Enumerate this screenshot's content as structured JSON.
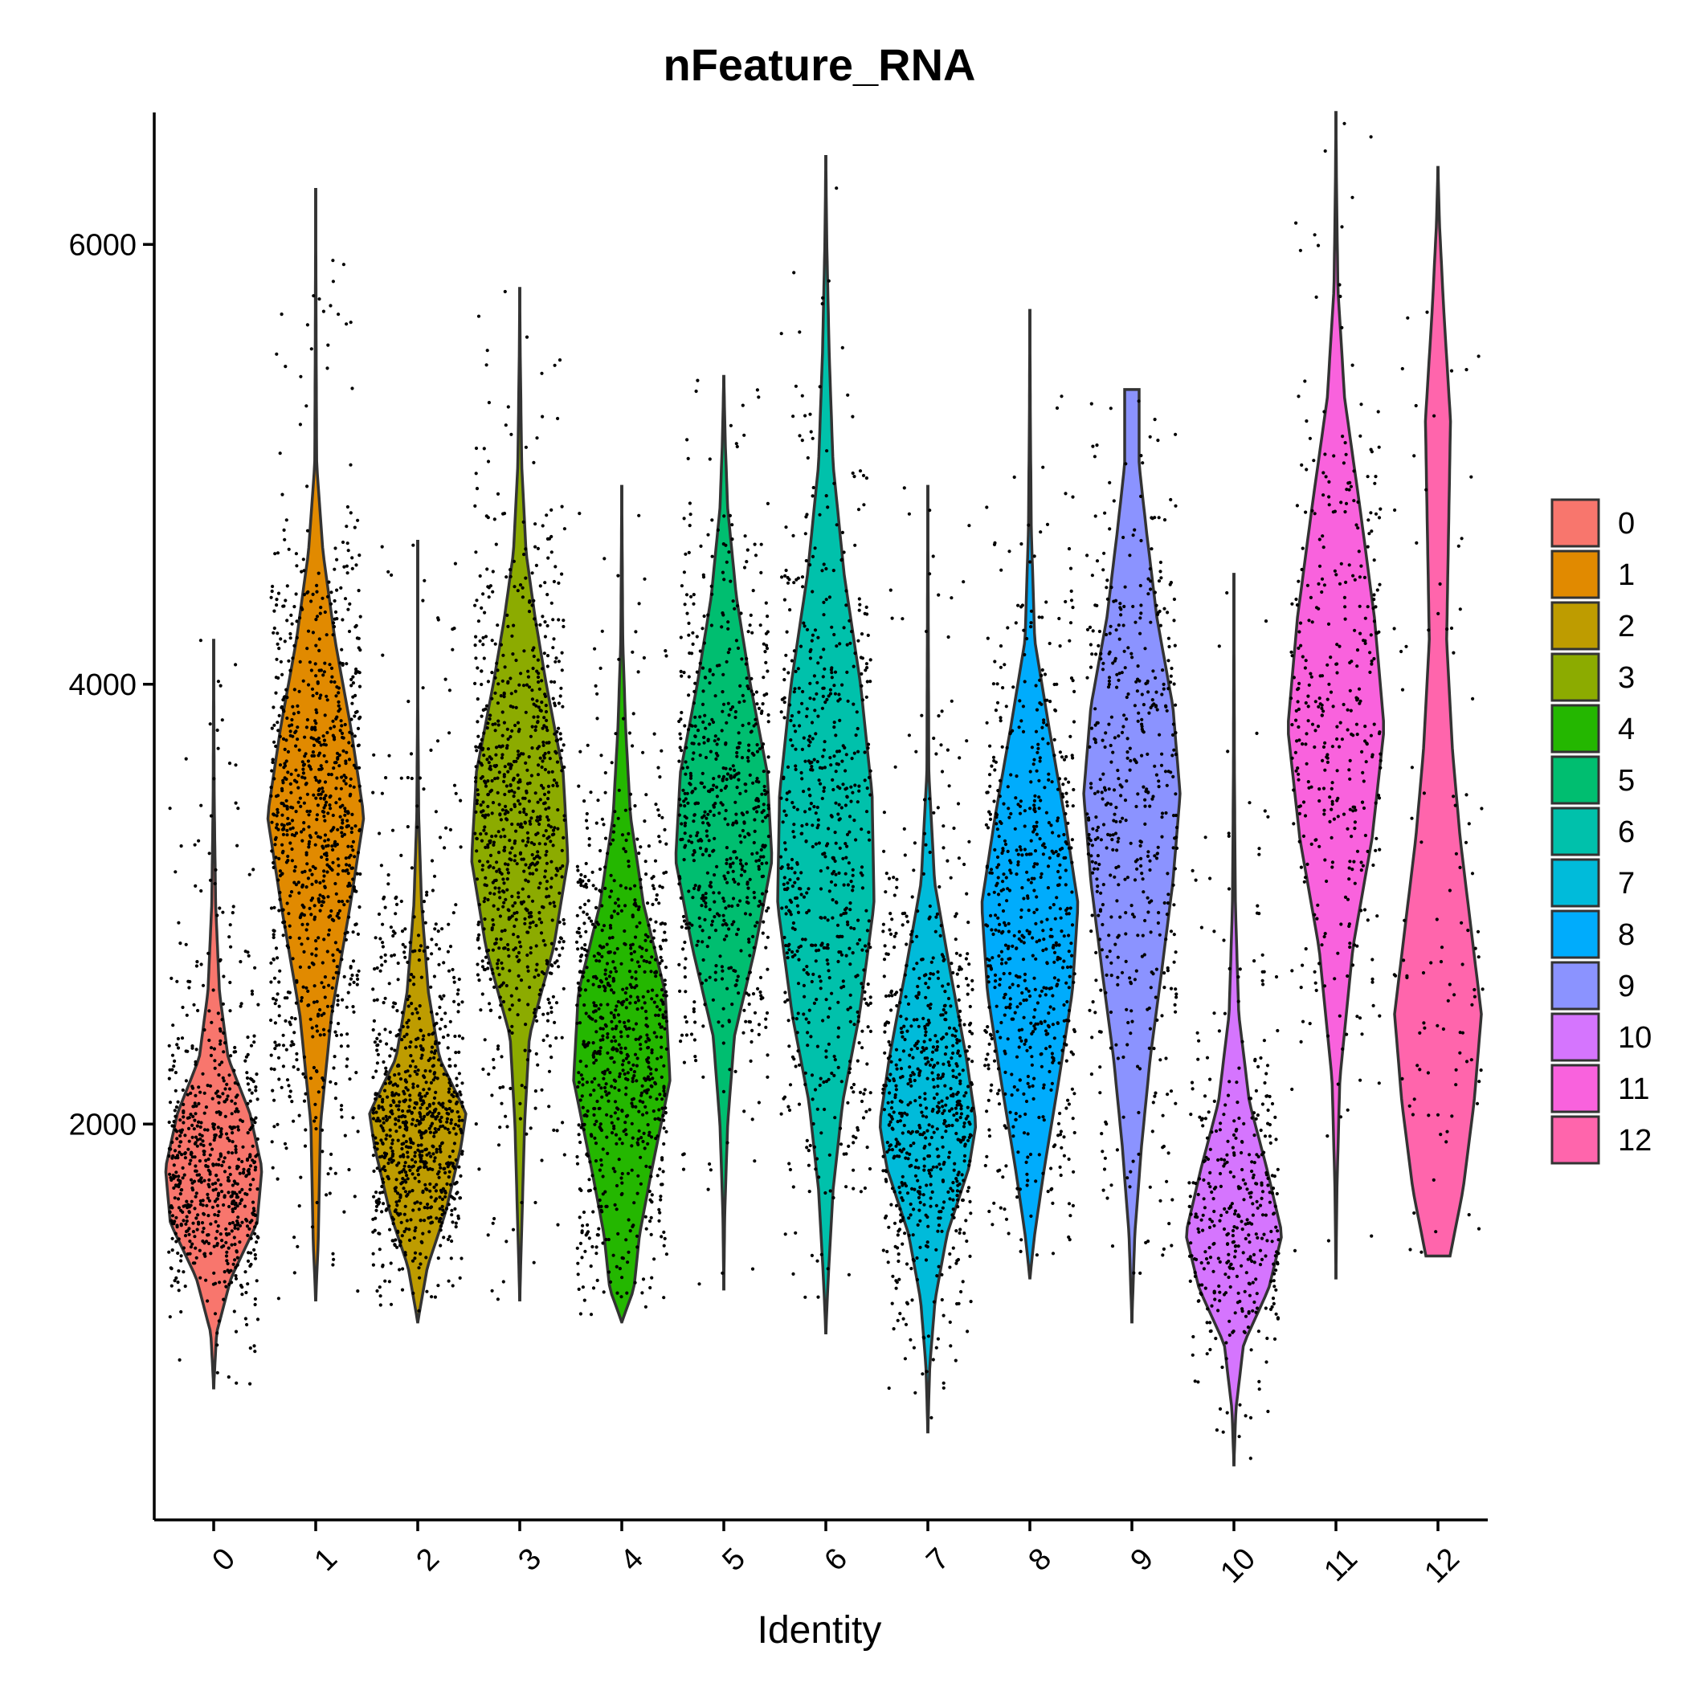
{
  "chart_data": {
    "type": "violin",
    "title": "nFeature_RNA",
    "xlabel": "Identity",
    "ylabel": "",
    "ylim": [
      200,
      6600
    ],
    "yticks": [
      2000,
      4000,
      6000
    ],
    "grid": false,
    "legend_position": "right",
    "categories": [
      "0",
      "1",
      "2",
      "3",
      "4",
      "5",
      "6",
      "7",
      "8",
      "9",
      "10",
      "11",
      "12"
    ],
    "series": [
      {
        "name": "0",
        "color": "#F8766D",
        "min": 800,
        "max": 4200,
        "profile": [
          [
            800,
            0
          ],
          [
            1050,
            0.06
          ],
          [
            1300,
            0.36
          ],
          [
            1550,
            0.9
          ],
          [
            1800,
            1
          ],
          [
            2050,
            0.75
          ],
          [
            2300,
            0.3
          ],
          [
            2600,
            0.12
          ],
          [
            3000,
            0.04
          ],
          [
            3500,
            0.01
          ],
          [
            4200,
            0
          ]
        ],
        "points": 700
      },
      {
        "name": "1",
        "color": "#E18A00",
        "min": 1200,
        "max": 6250,
        "profile": [
          [
            1200,
            0
          ],
          [
            1450,
            0.05
          ],
          [
            2000,
            0.1
          ],
          [
            2500,
            0.33
          ],
          [
            3000,
            0.72
          ],
          [
            3400,
            1
          ],
          [
            3800,
            0.73
          ],
          [
            4200,
            0.4
          ],
          [
            4600,
            0.15
          ],
          [
            5000,
            0.02
          ],
          [
            5500,
            0.01
          ],
          [
            6250,
            0
          ]
        ],
        "points": 900
      },
      {
        "name": "2",
        "color": "#BE9C00",
        "min": 1100,
        "max": 4650,
        "profile": [
          [
            1100,
            0
          ],
          [
            1350,
            0.2
          ],
          [
            1600,
            0.58
          ],
          [
            1900,
            0.9
          ],
          [
            2050,
            1
          ],
          [
            2300,
            0.45
          ],
          [
            2600,
            0.22
          ],
          [
            3000,
            0.08
          ],
          [
            3400,
            0.02
          ],
          [
            4000,
            0
          ],
          [
            4650,
            0
          ]
        ],
        "points": 850
      },
      {
        "name": "3",
        "color": "#8CAB00",
        "min": 1200,
        "max": 5800,
        "profile": [
          [
            1200,
            0
          ],
          [
            1600,
            0.05
          ],
          [
            2000,
            0.1
          ],
          [
            2400,
            0.2
          ],
          [
            2800,
            0.7
          ],
          [
            3200,
            1
          ],
          [
            3600,
            0.9
          ],
          [
            4000,
            0.55
          ],
          [
            4300,
            0.32
          ],
          [
            4600,
            0.13
          ],
          [
            5000,
            0.04
          ],
          [
            5500,
            0.01
          ],
          [
            5800,
            0
          ]
        ],
        "points": 850
      },
      {
        "name": "4",
        "color": "#24B700",
        "min": 1100,
        "max": 4900,
        "profile": [
          [
            1100,
            0
          ],
          [
            1250,
            0.25
          ],
          [
            1500,
            0.37
          ],
          [
            1800,
            0.63
          ],
          [
            2200,
            1
          ],
          [
            2600,
            0.9
          ],
          [
            3000,
            0.45
          ],
          [
            3400,
            0.18
          ],
          [
            3800,
            0.08
          ],
          [
            4200,
            0.02
          ],
          [
            4900,
            0
          ]
        ],
        "points": 800
      },
      {
        "name": "5",
        "color": "#00BE70",
        "min": 1250,
        "max": 5400,
        "profile": [
          [
            1250,
            0
          ],
          [
            1600,
            0.02
          ],
          [
            2000,
            0.08
          ],
          [
            2400,
            0.22
          ],
          [
            2800,
            0.65
          ],
          [
            3200,
            1
          ],
          [
            3600,
            0.9
          ],
          [
            4000,
            0.55
          ],
          [
            4400,
            0.26
          ],
          [
            4800,
            0.08
          ],
          [
            5100,
            0.03
          ],
          [
            5400,
            0
          ]
        ],
        "points": 650
      },
      {
        "name": "6",
        "color": "#00C1AB",
        "min": 1050,
        "max": 6400,
        "profile": [
          [
            1050,
            0
          ],
          [
            1300,
            0.05
          ],
          [
            1700,
            0.15
          ],
          [
            2100,
            0.35
          ],
          [
            2500,
            0.7
          ],
          [
            3000,
            1
          ],
          [
            3500,
            0.96
          ],
          [
            4000,
            0.72
          ],
          [
            4500,
            0.38
          ],
          [
            5000,
            0.15
          ],
          [
            5500,
            0.07
          ],
          [
            6000,
            0.02
          ],
          [
            6400,
            0
          ]
        ],
        "points": 650
      },
      {
        "name": "7",
        "color": "#00BBDA",
        "min": 600,
        "max": 4900,
        "profile": [
          [
            600,
            0
          ],
          [
            900,
            0.04
          ],
          [
            1200,
            0.15
          ],
          [
            1500,
            0.4
          ],
          [
            1800,
            0.85
          ],
          [
            2000,
            1
          ],
          [
            2300,
            0.8
          ],
          [
            2700,
            0.46
          ],
          [
            3100,
            0.14
          ],
          [
            3600,
            0.02
          ],
          [
            4200,
            0.01
          ],
          [
            4900,
            0
          ]
        ],
        "points": 700
      },
      {
        "name": "8",
        "color": "#00ACFC",
        "min": 1300,
        "max": 5700,
        "profile": [
          [
            1300,
            0
          ],
          [
            1500,
            0.1
          ],
          [
            1800,
            0.3
          ],
          [
            2200,
            0.6
          ],
          [
            2600,
            0.88
          ],
          [
            3000,
            1
          ],
          [
            3400,
            0.72
          ],
          [
            3800,
            0.4
          ],
          [
            4200,
            0.1
          ],
          [
            4700,
            0.03
          ],
          [
            5200,
            0.01
          ],
          [
            5700,
            0
          ]
        ],
        "points": 650
      },
      {
        "name": "9",
        "color": "#8B93FF",
        "min": 1100,
        "max": 5340,
        "profile": [
          [
            1100,
            0
          ],
          [
            1500,
            0.06
          ],
          [
            1900,
            0.2
          ],
          [
            2300,
            0.38
          ],
          [
            2700,
            0.62
          ],
          [
            3100,
            0.85
          ],
          [
            3500,
            1
          ],
          [
            3900,
            0.85
          ],
          [
            4300,
            0.52
          ],
          [
            4700,
            0.3
          ],
          [
            5000,
            0.15
          ],
          [
            5340,
            0.15
          ]
        ],
        "points": 500
      },
      {
        "name": "10",
        "color": "#D575FE",
        "min": 450,
        "max": 4500,
        "profile": [
          [
            450,
            0
          ],
          [
            700,
            0.04
          ],
          [
            1000,
            0.2
          ],
          [
            1250,
            0.72
          ],
          [
            1500,
            1
          ],
          [
            1800,
            0.68
          ],
          [
            2100,
            0.32
          ],
          [
            2500,
            0.1
          ],
          [
            3000,
            0.03
          ],
          [
            3600,
            0.01
          ],
          [
            4500,
            0
          ]
        ],
        "points": 400
      },
      {
        "name": "11",
        "color": "#F962DD",
        "min": 1300,
        "max": 6600,
        "profile": [
          [
            1300,
            0
          ],
          [
            1700,
            0.02
          ],
          [
            2200,
            0.08
          ],
          [
            2800,
            0.35
          ],
          [
            3300,
            0.75
          ],
          [
            3800,
            1
          ],
          [
            4300,
            0.8
          ],
          [
            4800,
            0.5
          ],
          [
            5300,
            0.18
          ],
          [
            5800,
            0.04
          ],
          [
            6300,
            0.01
          ],
          [
            6600,
            0
          ]
        ],
        "points": 380
      },
      {
        "name": "12",
        "color": "#FF65AC",
        "min": 1400,
        "max": 6350,
        "profile": [
          [
            1400,
            0.25
          ],
          [
            1700,
            0.52
          ],
          [
            2100,
            0.75
          ],
          [
            2500,
            0.9
          ],
          [
            2900,
            0.68
          ],
          [
            3300,
            0.46
          ],
          [
            3700,
            0.3
          ],
          [
            4200,
            0.18
          ],
          [
            4700,
            0.22
          ],
          [
            5200,
            0.26
          ],
          [
            5700,
            0.12
          ],
          [
            6100,
            0.03
          ],
          [
            6350,
            0
          ]
        ],
        "points": 100
      }
    ]
  }
}
